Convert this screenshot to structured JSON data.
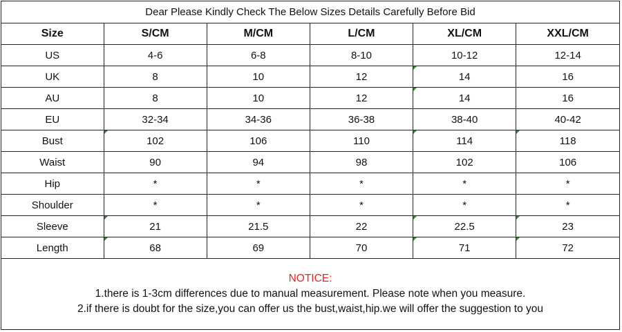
{
  "title": "Dear Please Kindly Check The Below Sizes Details Carefully Before Bid",
  "table": {
    "headers": [
      "Size",
      "S/CM",
      "M/CM",
      "L/CM",
      "XL/CM",
      "XXL/CM"
    ],
    "rows": [
      [
        "US",
        "4-6",
        "6-8",
        "8-10",
        "10-12",
        "12-14"
      ],
      [
        "UK",
        "8",
        "10",
        "12",
        "14",
        "16"
      ],
      [
        "AU",
        "8",
        "10",
        "12",
        "14",
        "16"
      ],
      [
        "EU",
        "32-34",
        "34-36",
        "36-38",
        "38-40",
        "40-42"
      ],
      [
        "Bust",
        "102",
        "106",
        "110",
        "114",
        "118"
      ],
      [
        "Waist",
        "90",
        "94",
        "98",
        "102",
        "106"
      ],
      [
        "Hip",
        "*",
        "*",
        "*",
        "*",
        "*"
      ],
      [
        "Shoulder",
        "*",
        "*",
        "*",
        "*",
        "*"
      ],
      [
        "Sleeve",
        "21",
        "21.5",
        "22",
        "22.5",
        "23"
      ],
      [
        "Length",
        "68",
        "69",
        "70",
        "71",
        "72"
      ]
    ]
  },
  "notice": {
    "heading": "NOTICE:",
    "line1": "1.there is 1-3cm differences due to manual measurement. Please note when you measure.",
    "line2": "2.if there is doubt for the size,you can offer us the bust,waist,hip.we will offer the suggestion to you"
  },
  "colors": {
    "notice_heading": "#e8241f",
    "border": "#222222"
  }
}
